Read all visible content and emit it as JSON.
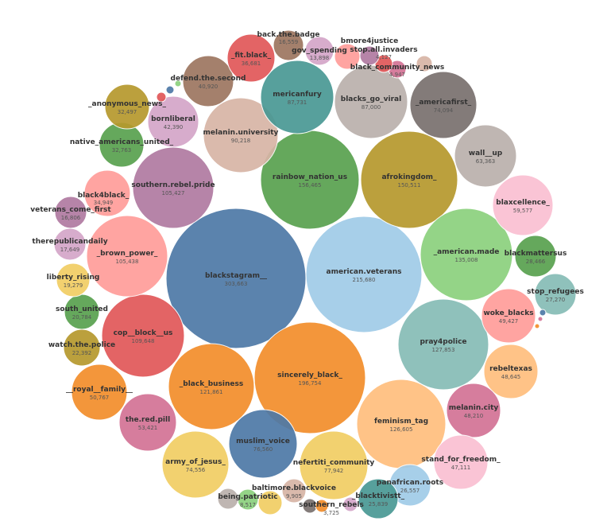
{
  "chart_data": {
    "type": "packed-bubble",
    "bubbles": [
      {
        "label": "blackstagram__",
        "value": "303,663",
        "color": "#4e79a7"
      },
      {
        "label": "american.veterans",
        "value": "215,680",
        "color": "#a0cbe8"
      },
      {
        "label": "sincerely_black_",
        "value": "196,754",
        "color": "#f28e2b"
      },
      {
        "label": "rainbow_nation_us",
        "value": "156,465",
        "color": "#59a14f"
      },
      {
        "label": "afrokingdom_",
        "value": "150,511",
        "color": "#b6992d"
      },
      {
        "label": "_american.made",
        "value": "135,008",
        "color": "#8cd17d"
      },
      {
        "label": "pray4police",
        "value": "127,853",
        "color": "#86bcb6"
      },
      {
        "label": "feminism_tag",
        "value": "126,605",
        "color": "#ffbe7d"
      },
      {
        "label": "_black_business",
        "value": "121,861",
        "color": "#f28e2b"
      },
      {
        "label": "cop__block__us",
        "value": "109,648",
        "color": "#e15759"
      },
      {
        "label": "_brown_power_",
        "value": "105,438",
        "color": "#ff9d9a"
      },
      {
        "label": "southern.rebel.pride",
        "value": "105,427",
        "color": "#b07aa1"
      },
      {
        "label": "melanin.university",
        "value": "90,218",
        "color": "#d7b5a6"
      },
      {
        "label": "mericanfury",
        "value": "87,731",
        "color": "#499894"
      },
      {
        "label": "blacks_go_viral",
        "value": "87,000",
        "color": "#bab0ac"
      },
      {
        "label": "nefertiti_community",
        "value": "77,942",
        "color": "#f1ce63"
      },
      {
        "label": "muslim_voice",
        "value": "76,560",
        "color": "#4e79a7"
      },
      {
        "label": "army_of_jesus_",
        "value": "74,556",
        "color": "#f1ce63"
      },
      {
        "label": "_americafirst_",
        "value": "74,094",
        "color": "#79706e"
      },
      {
        "label": "wall__up",
        "value": "63,363",
        "color": "#bab0ac"
      },
      {
        "label": "blaxcellence_",
        "value": "59,577",
        "color": "#fabfd2"
      },
      {
        "label": "the.red.pill",
        "value": "53,421",
        "color": "#d37295"
      },
      {
        "label": "__royal__family__",
        "value": "50,767",
        "color": "#f28e2b"
      },
      {
        "label": "woke_blacks",
        "value": "49,427",
        "color": "#ff9d9a"
      },
      {
        "label": "rebeltexas",
        "value": "48,645",
        "color": "#ffbe7d"
      },
      {
        "label": "melanin.city",
        "value": "48,210",
        "color": "#d37295"
      },
      {
        "label": "stand_for_freedom_",
        "value": "47,111",
        "color": "#fabfd2"
      },
      {
        "label": "bornliberal",
        "value": "42,390",
        "color": "#d4a6c8"
      },
      {
        "label": "defend.the.second",
        "value": "40,920",
        "color": "#9d7660"
      },
      {
        "label": "_fit.black_",
        "value": "36,681",
        "color": "#e15759"
      },
      {
        "label": "black4black_",
        "value": "34,949",
        "color": "#ff9d9a"
      },
      {
        "label": "native_americans_united_",
        "value": "32,763",
        "color": "#59a14f"
      },
      {
        "label": "_anonymous_news_",
        "value": "32,497",
        "color": "#b6992d"
      },
      {
        "label": "blackmattersus",
        "value": "28,466",
        "color": "#59a14f"
      },
      {
        "label": "stop_refugees",
        "value": "27,270",
        "color": "#86bcb6"
      },
      {
        "label": "panafrican.roots",
        "value": "26,557",
        "color": "#a0cbe8"
      },
      {
        "label": "_blacktivistt_",
        "value": "25,839",
        "color": "#499894"
      },
      {
        "label": "watch.the.police",
        "value": "22,392",
        "color": "#b6992d"
      },
      {
        "label": "south_united",
        "value": "20,784",
        "color": "#59a14f"
      },
      {
        "label": "liberty_rising",
        "value": "19,279",
        "color": "#f1ce63"
      },
      {
        "label": "therepublicandaily",
        "value": "17,649",
        "color": "#d4a6c8"
      },
      {
        "label": "veterans_come_first",
        "value": "16,806",
        "color": "#b07aa1"
      },
      {
        "label": "back.the.badge",
        "value": "16,559",
        "color": "#9d7660"
      },
      {
        "label": "gov_spending",
        "value": "13,898",
        "color": "#d4a6c8"
      },
      {
        "label": "baltimore.blackvoice",
        "value": "9,905",
        "color": "#d7b5a6"
      },
      {
        "label": "being.patriotic",
        "value": "8,517",
        "color": "#8cd17d"
      },
      {
        "label": "black_community_news",
        "value": "4,947",
        "color": "#d37295"
      },
      {
        "label": "stop.all.invaders",
        "value": "4,127",
        "color": "#e15759"
      },
      {
        "label": "southern_rebels",
        "value": "3,725",
        "color": "#79706e"
      },
      {
        "label": "bmore4justice",
        "value": "",
        "color": "#b07aa1"
      },
      {
        "label": "",
        "value": "",
        "color": "#ff9d9a"
      },
      {
        "label": "",
        "value": "",
        "color": "#d7b5a6"
      },
      {
        "label": "",
        "value": "",
        "color": "#bab0ac"
      },
      {
        "label": "",
        "value": "",
        "color": "#f1ce63"
      },
      {
        "label": "",
        "value": "",
        "color": "#79706e"
      },
      {
        "label": "",
        "value": "",
        "color": "#f28e2b"
      },
      {
        "label": "",
        "value": "",
        "color": "#d4a6c8"
      },
      {
        "label": "",
        "value": "",
        "color": "#e15759"
      },
      {
        "label": "",
        "value": "",
        "color": "#4e79a7"
      },
      {
        "label": "",
        "value": "",
        "color": "#8cd17d"
      },
      {
        "label": "",
        "value": "",
        "color": "#4e79a7"
      },
      {
        "label": "",
        "value": "",
        "color": "#d37295"
      },
      {
        "label": "",
        "value": "",
        "color": "#f28e2b"
      }
    ]
  }
}
